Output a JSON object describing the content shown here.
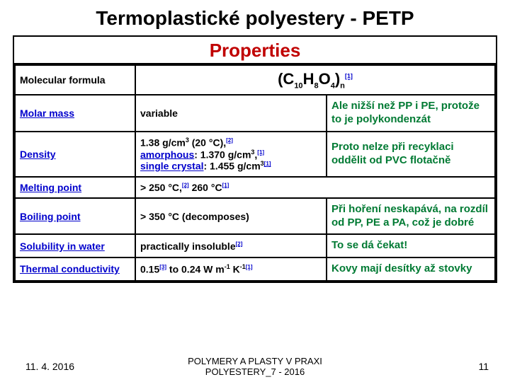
{
  "title": "Termoplastické polyestery - PETP",
  "properties_header": "Properties",
  "rows": {
    "molecular_formula": {
      "label": "Molecular formula",
      "formula_prefix": "(C",
      "s1": "10",
      "h": "H",
      "s2": "8",
      "o": "O",
      "s3": "4",
      "close": ")",
      "sn": "n",
      "ref": "[1]"
    },
    "molar": {
      "label_pre": "Molar mass",
      "value": "variable",
      "note": "Ale nižší než PP i PE, protože to je polykondenzát"
    },
    "density": {
      "label": "Density",
      "line1a": "1.38 g/cm",
      "exp3": "3",
      "line1b": " (20 °C),",
      "r1": "[2]",
      "amorph": "amorphous",
      "line2b": ": 1.370 g/cm",
      "r2": "[1]",
      "sc": "single crystal",
      "line3b": ": 1.455 g/cm",
      "r3": "[1]",
      "note": "Proto nelze při recyklaci oddělit od PVC flotačně"
    },
    "melting": {
      "label": "Melting point",
      "v1": "> 250 °C,",
      "r1": "[2]",
      "v2": " 260 °C",
      "r2": "[1]"
    },
    "boiling": {
      "label": "Boiling point",
      "value": "> 350 °C (decomposes)",
      "note": "Při hoření neskapává, na rozdíl od PP, PE a PA, což je dobré"
    },
    "solub": {
      "label": "Solubility in water",
      "value": "practically insoluble",
      "r1": "[2]",
      "note": "To se  dá čekat!"
    },
    "thermal": {
      "label": "Thermal conductivity",
      "va": "0.15",
      "r1": "[3]",
      "vb": " to 0.24 W m",
      "em1": "-1",
      "vc": " K",
      "em2": "-1",
      "r2": "[1]",
      "note": "Kovy mají desítky až stovky"
    }
  },
  "footer": {
    "date": "11. 4. 2016",
    "center1": "POLYMERY A PLASTY V PRAXI",
    "center2": "POLYESTERY_7 - 2016",
    "page": "11"
  },
  "colors": {
    "title": "#000000",
    "header": "#c00000",
    "link": "#0000cc",
    "note": "#007a33"
  }
}
